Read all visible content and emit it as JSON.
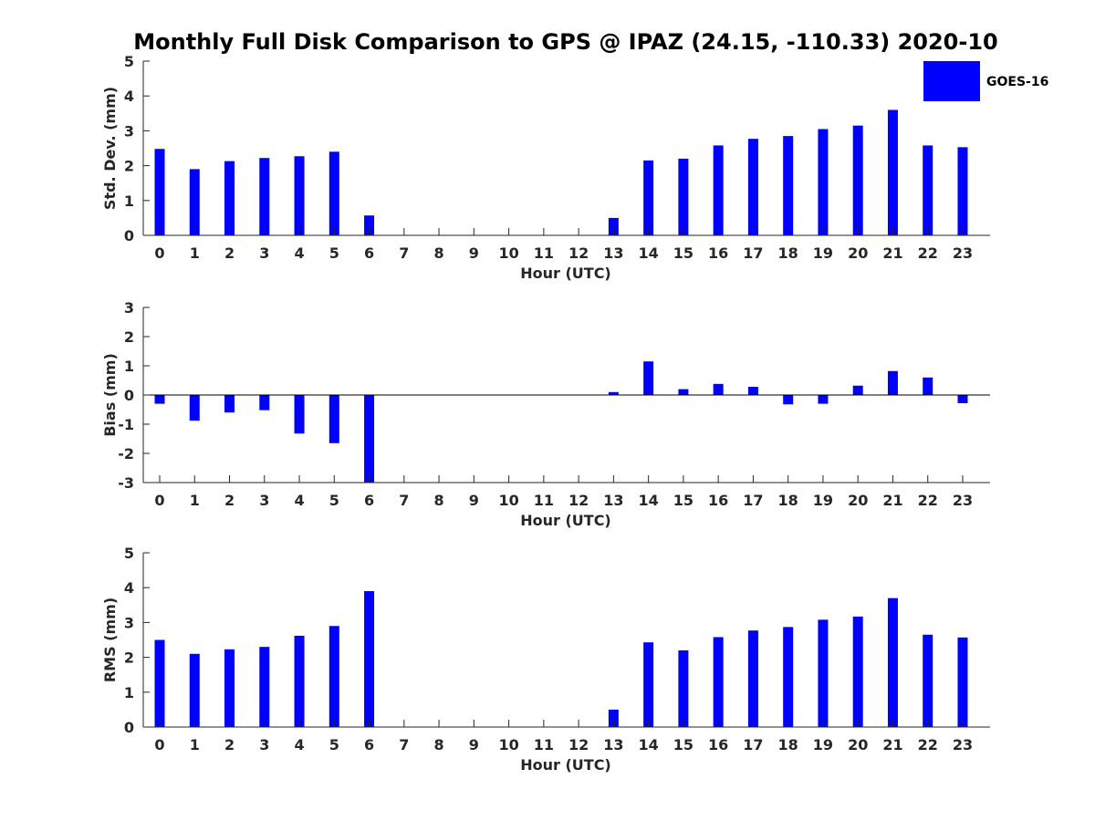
{
  "title": "Monthly Full Disk Comparison to GPS @ IPAZ (24.15, -110.33) 2020-10",
  "legend": {
    "label": "GOES-16",
    "color": "#0000ff",
    "position": "top-right"
  },
  "chart_data": [
    {
      "type": "bar",
      "ylabel": "Std. Dev. (mm)",
      "xlabel": "Hour (UTC)",
      "ylim": [
        0,
        5
      ],
      "yticks": [
        0,
        1,
        2,
        3,
        4,
        5
      ],
      "categories": [
        "0",
        "1",
        "2",
        "3",
        "4",
        "5",
        "6",
        "7",
        "8",
        "9",
        "10",
        "11",
        "12",
        "13",
        "14",
        "15",
        "16",
        "17",
        "18",
        "19",
        "20",
        "21",
        "22",
        "23"
      ],
      "series": [
        {
          "name": "GOES-16",
          "values": [
            2.48,
            1.9,
            2.13,
            2.22,
            2.27,
            2.4,
            0.57,
            null,
            null,
            null,
            null,
            null,
            null,
            0.5,
            2.15,
            2.2,
            2.58,
            2.77,
            2.85,
            3.05,
            3.15,
            3.6,
            2.58,
            2.53
          ]
        }
      ]
    },
    {
      "type": "bar",
      "ylabel": "Bias (mm)",
      "xlabel": "Hour (UTC)",
      "ylim": [
        -3,
        3
      ],
      "yticks": [
        -3,
        -2,
        -1,
        0,
        1,
        2,
        3
      ],
      "categories": [
        "0",
        "1",
        "2",
        "3",
        "4",
        "5",
        "6",
        "7",
        "8",
        "9",
        "10",
        "11",
        "12",
        "13",
        "14",
        "15",
        "16",
        "17",
        "18",
        "19",
        "20",
        "21",
        "22",
        "23"
      ],
      "series": [
        {
          "name": "GOES-16",
          "values": [
            -0.3,
            -0.88,
            -0.6,
            -0.52,
            -1.32,
            -1.65,
            -3.0,
            null,
            null,
            null,
            null,
            null,
            null,
            0.1,
            1.15,
            0.2,
            0.38,
            0.28,
            -0.32,
            -0.3,
            0.32,
            0.82,
            0.6,
            -0.28
          ]
        }
      ]
    },
    {
      "type": "bar",
      "ylabel": "RMS (mm)",
      "xlabel": "Hour (UTC)",
      "ylim": [
        0,
        5
      ],
      "yticks": [
        0,
        1,
        2,
        3,
        4,
        5
      ],
      "categories": [
        "0",
        "1",
        "2",
        "3",
        "4",
        "5",
        "6",
        "7",
        "8",
        "9",
        "10",
        "11",
        "12",
        "13",
        "14",
        "15",
        "16",
        "17",
        "18",
        "19",
        "20",
        "21",
        "22",
        "23"
      ],
      "series": [
        {
          "name": "GOES-16",
          "values": [
            2.5,
            2.1,
            2.23,
            2.3,
            2.62,
            2.9,
            3.9,
            null,
            null,
            null,
            null,
            null,
            null,
            0.5,
            2.43,
            2.2,
            2.58,
            2.77,
            2.87,
            3.08,
            3.17,
            3.7,
            2.65,
            2.57
          ]
        }
      ]
    }
  ]
}
